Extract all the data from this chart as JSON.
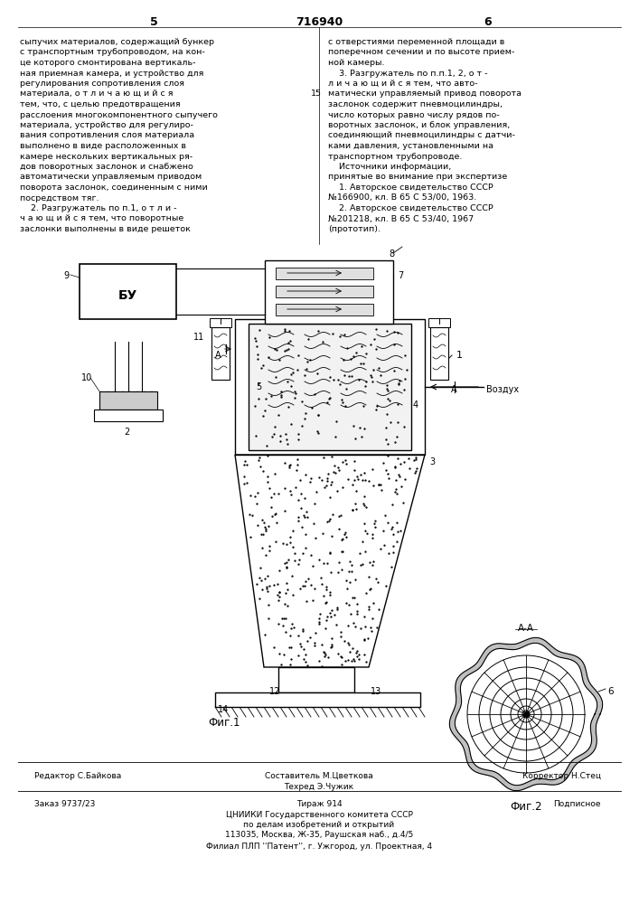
{
  "page_number_left": "5",
  "page_number_center": "716940",
  "page_number_right": "6",
  "bg_color": "#ffffff",
  "line_color": "#000000",
  "text_color": "#000000",
  "fig_width": 7.07,
  "fig_height": 10.0,
  "left_col_text": [
    "сыпучих материалов, содержащий бункер",
    "с транспортным трубопроводом, на кон-",
    "це которого смонтирована вертикаль-",
    "ная приемная камера, и устройство для",
    "регулирования сопротивления слоя",
    "материала, о т л и ч а ю щ и й с я",
    "тем, что, с целью предотвращения",
    "расслоения многокомпонентного сыпучего",
    "материала, устройство для регулиро-",
    "вания сопротивления слоя материала",
    "выполнено в виде расположенных в",
    "камере нескольких вертикальных ря-",
    "дов поворотных заслонок и снабжено",
    "автоматически управляемым приводом",
    "поворота заслонок, соединенным с ними",
    "посредством тяг.",
    "    2. Разгружатель по п.1, о т л и -",
    "ч а ю щ и й с я тем, что поворотные",
    "заслонки выполнены в виде решеток"
  ],
  "right_col_text": [
    "с отверстиями переменной площади в",
    "поперечном сечении и по высоте прием-",
    "ной камеры.",
    "    3. Разгружатель по п.п.1, 2, о т -",
    "л и ч а ю щ и й с я тем, что авто-",
    "матически управляемый привод поворота",
    "заслонок содержит пневмоцилиндры,",
    "число которых равно числу рядов по-",
    "воротных заслонок, и блок управления,",
    "соединяющий пневмоцилиндры с датчи-",
    "ками давления, установленными на",
    "транспортном трубопроводе.",
    "    Источники информации,",
    "принятые во внимание при экспертизе",
    "    1. Авторское свидетельство СССР",
    "№166900, кл. В 65 С 53/00, 1963.",
    "    2. Авторское свидетельство СССР",
    "№201218, кл. В 65 С 53/40, 1967",
    "(прототип)."
  ],
  "line_number_15": "15",
  "footer_left_label": "Редактор С.Байкова",
  "footer_center_label": "Составитель М.Цветкова",
  "footer_right_label": "Корректор Н.Стец",
  "footer_tech_label": "Техред Э.Чужик",
  "footer_order": "Заказ 9737/23",
  "footer_tirazh": "Тираж 914",
  "footer_podpisnoe": "Подписное",
  "footer_tsniiki": "ЦНИИКИ Государственного комитета СССР",
  "footer_po_delam": "по делам изобретений и открытий",
  "footer_address": "113035, Москва, Ж-35, Раушская наб., д.4/5",
  "footer_filial": "Филиал ПЛП ''Патент'', г. Ужгород, ул. Проектная, 4",
  "fig1_caption": "Фиг.1",
  "fig2_caption": "Фиг.2",
  "fig2_section_label": "А-А"
}
